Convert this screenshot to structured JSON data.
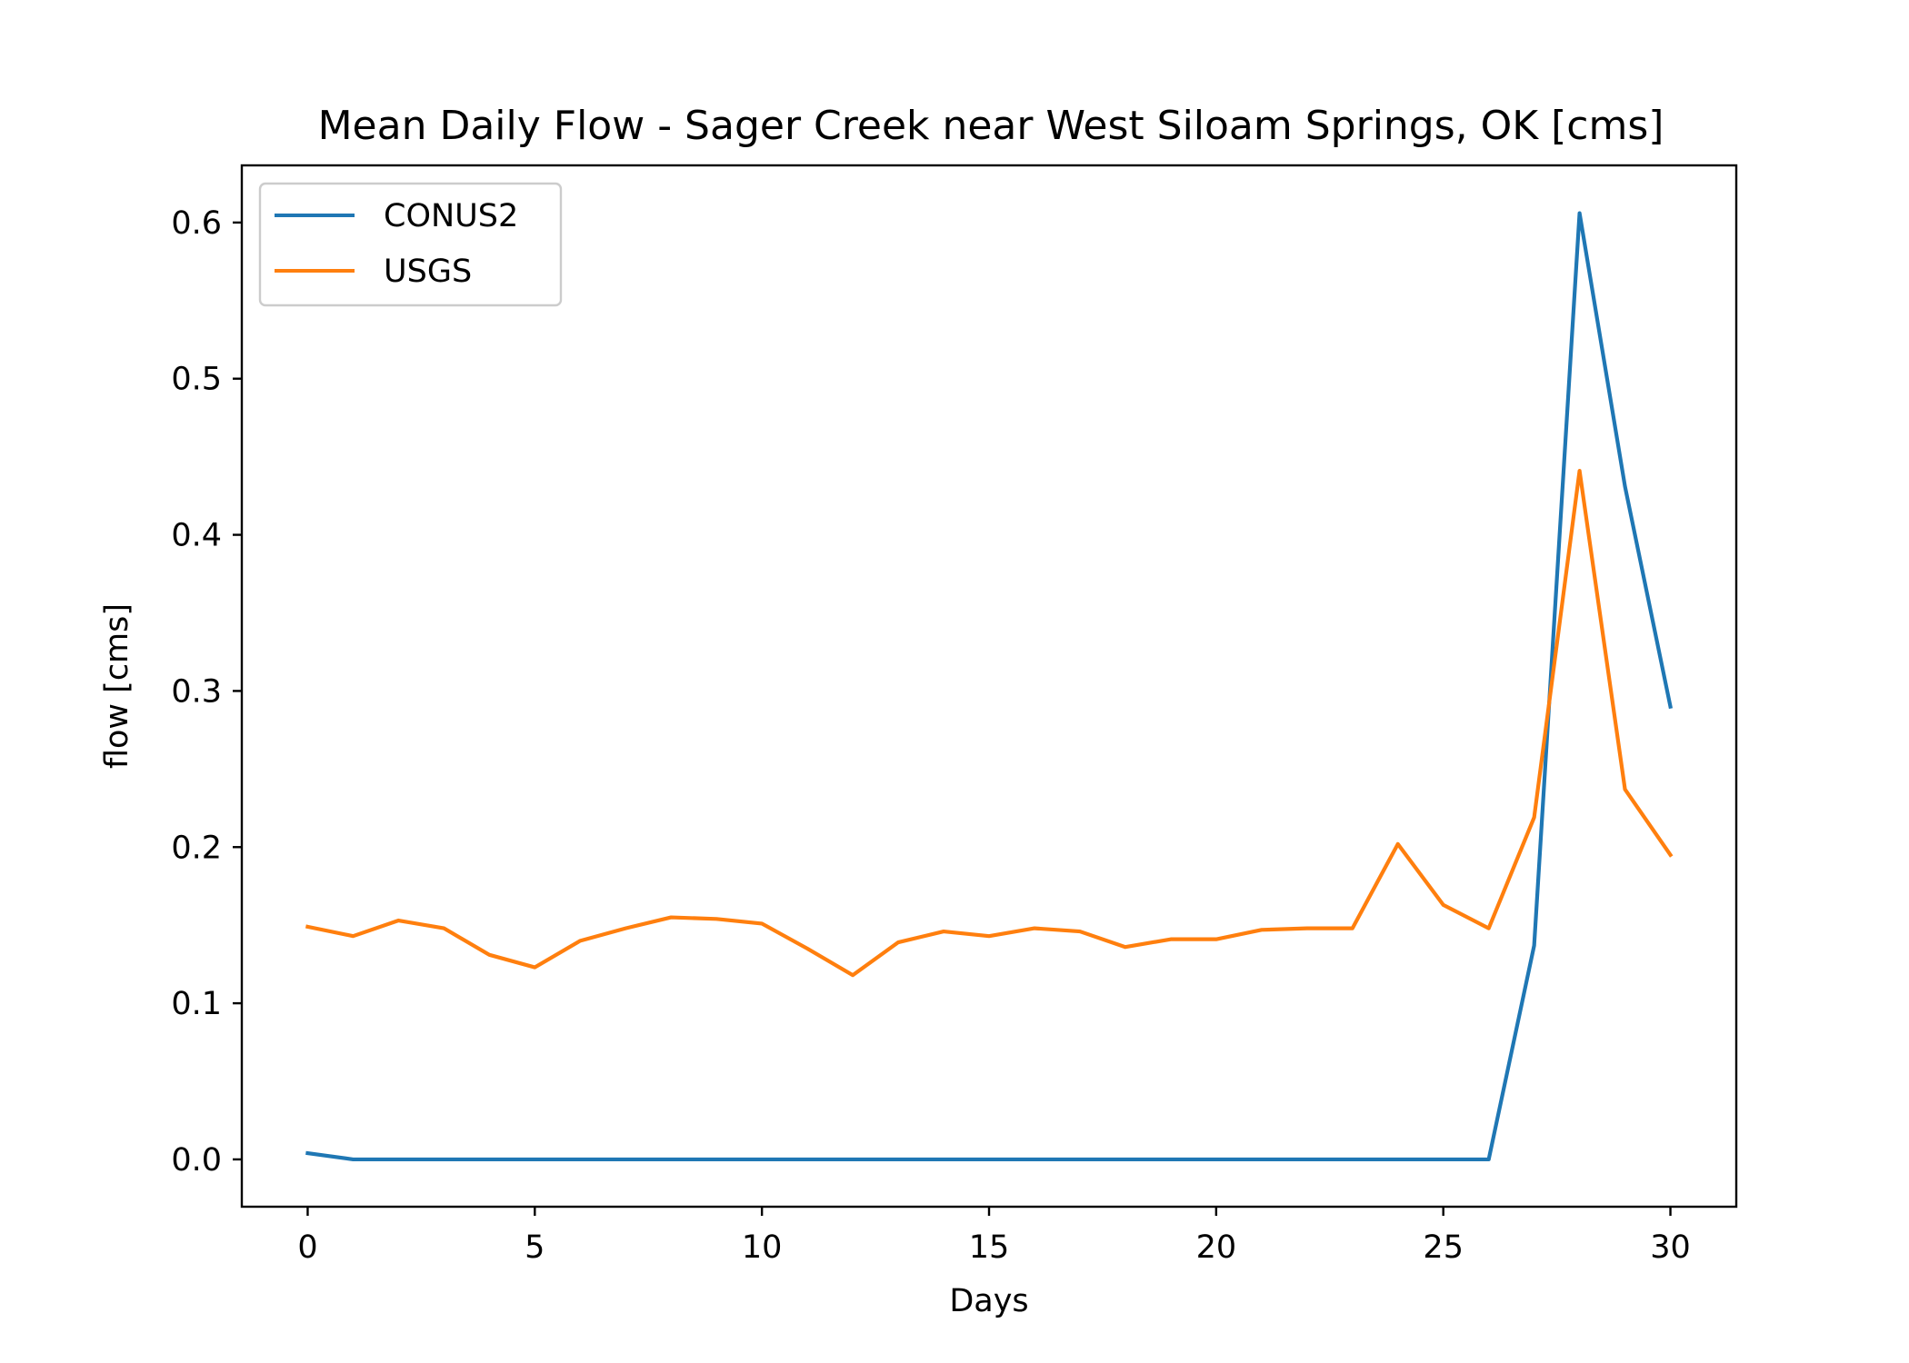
{
  "chart_data": {
    "type": "line",
    "title": "Mean Daily Flow - Sager Creek near West Siloam Springs, OK [cms]",
    "xlabel": "Days",
    "ylabel": "flow [cms]",
    "xlim": [
      -1.45,
      31.45
    ],
    "ylim": [
      -0.0303,
      0.6366
    ],
    "xticks": [
      0,
      5,
      10,
      15,
      20,
      25,
      30
    ],
    "xtick_labels": [
      "0",
      "5",
      "10",
      "15",
      "20",
      "25",
      "30"
    ],
    "yticks": [
      0.0,
      0.1,
      0.2,
      0.3,
      0.4,
      0.5,
      0.6
    ],
    "ytick_labels": [
      "0.0",
      "0.1",
      "0.2",
      "0.3",
      "0.4",
      "0.5",
      "0.6"
    ],
    "grid": false,
    "legend_position": "upper-left",
    "x": [
      0,
      1,
      2,
      3,
      4,
      5,
      6,
      7,
      8,
      9,
      10,
      11,
      12,
      13,
      14,
      15,
      16,
      17,
      18,
      19,
      20,
      21,
      22,
      23,
      24,
      25,
      26,
      27,
      28,
      29,
      30
    ],
    "series": [
      {
        "name": "CONUS2",
        "color": "#1f77b4",
        "values": [
          0.004,
          0.0,
          0.0,
          0.0,
          0.0,
          0.0,
          0.0,
          0.0,
          0.0,
          0.0,
          0.0,
          0.0,
          0.0,
          0.0,
          0.0,
          0.0,
          0.0,
          0.0,
          0.0,
          0.0,
          0.0,
          0.0,
          0.0,
          0.0,
          0.0,
          0.0,
          0.0,
          0.137,
          0.606,
          0.431,
          0.29
        ]
      },
      {
        "name": "USGS",
        "color": "#ff7f0e",
        "values": [
          0.149,
          0.143,
          0.153,
          0.148,
          0.131,
          0.123,
          0.14,
          0.148,
          0.155,
          0.154,
          0.151,
          0.135,
          0.118,
          0.139,
          0.146,
          0.143,
          0.148,
          0.146,
          0.136,
          0.141,
          0.141,
          0.147,
          0.148,
          0.148,
          0.202,
          0.163,
          0.148,
          0.219,
          0.441,
          0.237,
          0.195
        ]
      }
    ]
  }
}
